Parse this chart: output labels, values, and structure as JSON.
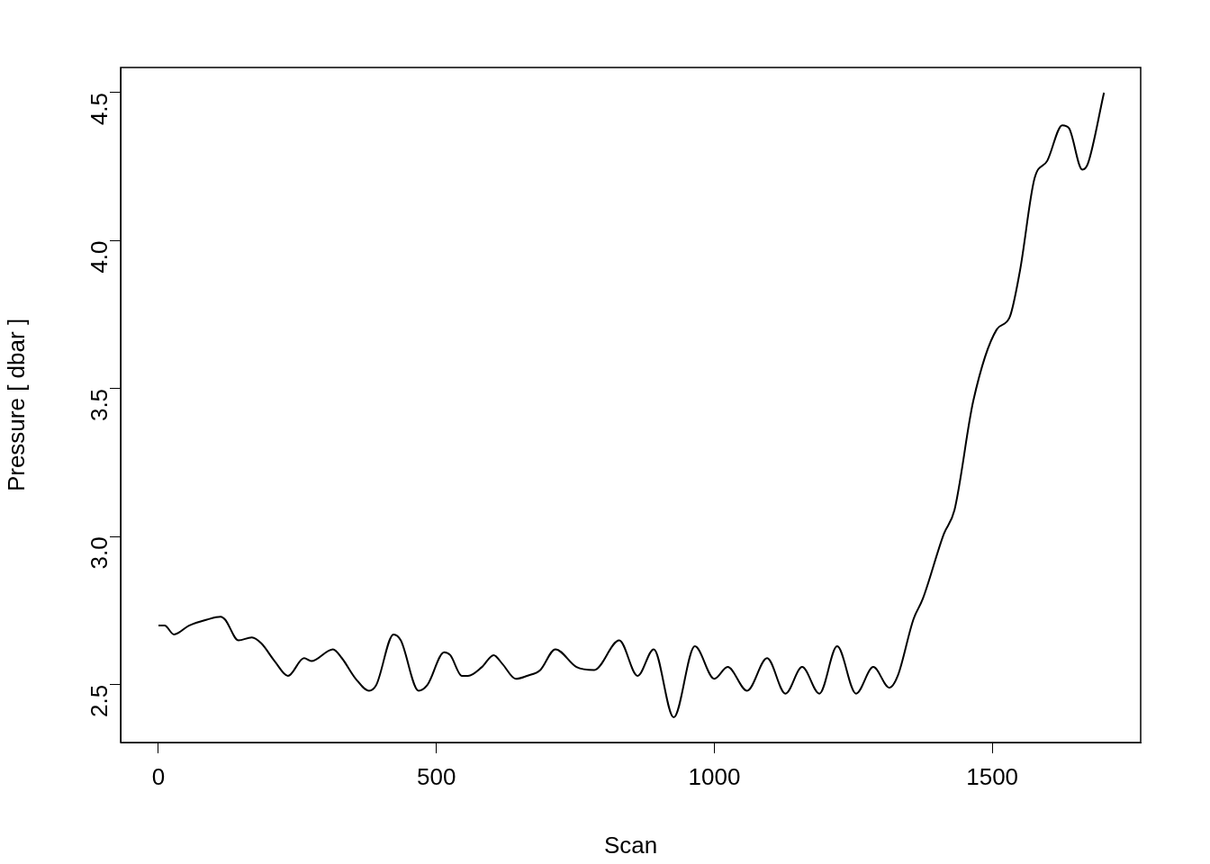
{
  "chart_data": {
    "type": "line",
    "xlabel": "Scan",
    "ylabel": "Pressure [ dbar ]",
    "x": [
      0,
      11,
      28,
      55,
      87,
      112,
      120,
      144,
      168,
      185,
      209,
      233,
      262,
      275,
      314,
      330,
      355,
      379,
      392,
      423,
      436,
      468,
      484,
      514,
      525,
      546,
      557,
      582,
      603,
      619,
      643,
      663,
      687,
      714,
      752,
      784,
      829,
      862,
      891,
      927,
      965,
      1000,
      1024,
      1059,
      1095,
      1128,
      1158,
      1189,
      1221,
      1255,
      1286,
      1315,
      1330,
      1358,
      1375,
      1413,
      1432,
      1466,
      1508,
      1531,
      1550,
      1576,
      1599,
      1626,
      1638,
      1662,
      1672,
      1701
    ],
    "series": [
      {
        "color": "#000000",
        "values": [
          2.7,
          2.7,
          2.67,
          2.7,
          2.72,
          2.73,
          2.72,
          2.65,
          2.66,
          2.64,
          2.58,
          2.53,
          2.59,
          2.58,
          2.62,
          2.59,
          2.52,
          2.48,
          2.5,
          2.67,
          2.65,
          2.48,
          2.5,
          2.61,
          2.6,
          2.53,
          2.53,
          2.56,
          2.6,
          2.57,
          2.52,
          2.53,
          2.55,
          2.62,
          2.56,
          2.55,
          2.65,
          2.53,
          2.62,
          2.39,
          2.63,
          2.52,
          2.56,
          2.48,
          2.59,
          2.47,
          2.56,
          2.47,
          2.63,
          2.47,
          2.56,
          2.49,
          2.53,
          2.72,
          2.79,
          3.01,
          3.09,
          3.46,
          3.7,
          3.74,
          3.9,
          4.21,
          4.27,
          4.39,
          4.38,
          4.24,
          4.26,
          4.5
        ]
      }
    ],
    "xlim": [
      -68,
      1767
    ],
    "ylim": [
      2.305,
      4.585
    ],
    "xticks": [
      0,
      500,
      1000,
      1500
    ],
    "yticks": [
      2.5,
      {
        "value": 3,
        "label": "3.0"
      },
      3.5,
      {
        "value": 4,
        "label": "4.0"
      },
      4.5
    ],
    "grid": false,
    "legend": false,
    "marker": "none",
    "line_style": "solid"
  }
}
